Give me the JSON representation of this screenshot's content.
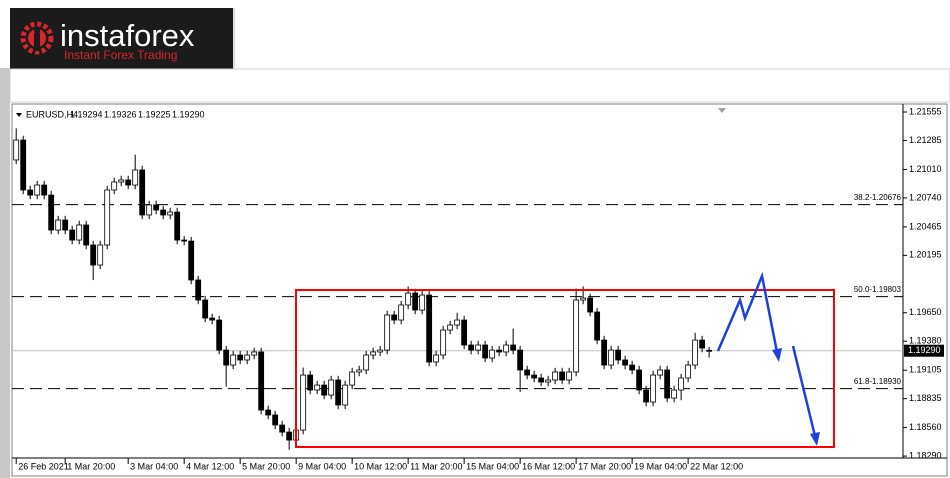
{
  "brand": {
    "name": "instaforex",
    "tagline": "Instant Forex Trading"
  },
  "chart_data": {
    "type": "candlestick",
    "symbol": "EURUSD,H4",
    "legend_values": [
      "1.19294",
      "1.19326",
      "1.19225",
      "1.19290"
    ],
    "last_price_label": "1.19290",
    "ylim": [
      1.18234,
      1.21612
    ],
    "xlim": [
      -0.6,
      126.7
    ],
    "yticks": [
      1.21555,
      1.21285,
      {
        "value": 1.2101,
        "label": "1.21010"
      },
      {
        "value": 1.2074,
        "label": "1.20740"
      },
      1.20465,
      1.20195,
      {
        "value": 1.1965,
        "label": "1.19650"
      },
      {
        "value": 1.1938,
        "label": "1.19380"
      },
      1.19105,
      1.18835,
      {
        "value": 1.1856,
        "label": "1.18560"
      },
      {
        "value": 1.1829,
        "label": "1.18290"
      }
    ],
    "xticks": [
      {
        "value": 0,
        "label": "26 Feb 2021"
      },
      {
        "value": 7,
        "label": "1 Mar 20:00"
      },
      {
        "value": 16,
        "label": "3 Mar 04:00"
      },
      {
        "value": 24,
        "label": "4 Mar 12:00"
      },
      {
        "value": 32,
        "label": "5 Mar 20:00"
      },
      {
        "value": 40,
        "label": "9 Mar 04:00"
      },
      {
        "value": 48,
        "label": "10 Mar 12:00"
      },
      {
        "value": 56,
        "label": "11 Mar 20:00"
      },
      {
        "value": 64,
        "label": "15 Mar 04:00"
      },
      {
        "value": 72,
        "label": "16 Mar 12:00"
      },
      {
        "value": 80,
        "label": "17 Mar 20:00"
      },
      {
        "value": 88,
        "label": "19 Mar 04:00"
      },
      {
        "value": 96,
        "label": "22 Mar 12:00"
      }
    ],
    "fib_levels": [
      {
        "value": 1.20676,
        "label": "38.2-1.20676"
      },
      {
        "value": 1.19803,
        "label": "50.0-1.19803"
      },
      {
        "value": 1.1893,
        "label": "61.8-1.18930"
      }
    ],
    "open": [
      1.211,
      1.21289,
      1.20815,
      1.20767,
      1.20862,
      1.20767,
      1.20435,
      1.2053,
      1.20435,
      1.2034,
      1.20483,
      1.20293,
      1.20103,
      1.20293,
      1.20815,
      1.20891,
      1.2091,
      1.20862,
      1.21005,
      1.20578,
      1.20673,
      1.20625,
      1.20578,
      1.20606,
      1.2034,
      1.2033,
      1.19961,
      1.19771,
      1.196,
      1.19581,
      1.19296,
      1.19154,
      1.19249,
      1.19202,
      1.19249,
      1.19278,
      1.18727,
      1.1868,
      1.18585,
      1.18518,
      1.18442,
      1.18537,
      1.19059,
      1.18917,
      1.18964,
      1.18869,
      1.19012,
      1.18775,
      1.18964,
      1.19088,
      1.19107,
      1.19249,
      1.19278,
      1.19296,
      1.19629,
      1.19581,
      1.19724,
      1.19837,
      1.19676,
      1.19818,
      1.19183,
      1.19249,
      1.19486,
      1.19534,
      1.19581,
      1.19344,
      1.19296,
      1.19344,
      1.19221,
      1.19296,
      1.19278,
      1.19344,
      1.19296,
      1.19107,
      1.19059,
      1.19031,
      1.18993,
      1.19012,
      1.19088,
      1.19012,
      1.19088,
      1.19771,
      1.1979,
      1.19657,
      1.19391,
      1.19154,
      1.19296,
      1.19202,
      1.19154,
      1.19107,
      1.18917,
      1.18803,
      1.19059,
      1.19107,
      1.18841,
      1.18917,
      1.19031,
      1.19154,
      1.19391,
      1.19294
    ],
    "high": [
      1.214,
      1.21329,
      1.20855,
      1.20902,
      1.20902,
      1.20807,
      1.2057,
      1.2057,
      1.20475,
      1.20523,
      1.20523,
      1.20333,
      1.20333,
      1.20855,
      1.20931,
      1.2095,
      1.2095,
      1.2115,
      1.21045,
      1.20713,
      1.20713,
      1.20665,
      1.20646,
      1.20646,
      1.2038,
      1.2037,
      1.20001,
      1.19811,
      1.1964,
      1.19621,
      1.19336,
      1.19289,
      1.19289,
      1.19289,
      1.19318,
      1.19318,
      1.18767,
      1.1872,
      1.18625,
      1.18558,
      1.18577,
      1.1913,
      1.19099,
      1.19004,
      1.19004,
      1.19052,
      1.19052,
      1.19004,
      1.19128,
      1.19147,
      1.19289,
      1.19318,
      1.19336,
      1.19669,
      1.19669,
      1.19764,
      1.199,
      1.19877,
      1.19858,
      1.19858,
      1.19289,
      1.19526,
      1.19574,
      1.1965,
      1.19621,
      1.19384,
      1.19384,
      1.19384,
      1.19336,
      1.19336,
      1.19384,
      1.195,
      1.19336,
      1.19147,
      1.19099,
      1.19071,
      1.19052,
      1.19128,
      1.19128,
      1.19128,
      1.1988,
      1.199,
      1.1983,
      1.19697,
      1.19431,
      1.19336,
      1.19336,
      1.19242,
      1.19194,
      1.19147,
      1.18957,
      1.19099,
      1.19147,
      1.19147,
      1.18957,
      1.19071,
      1.19194,
      1.1946,
      1.19431,
      1.19326
    ],
    "low": [
      1.2106,
      1.20775,
      1.20727,
      1.20727,
      1.20727,
      1.20395,
      1.20395,
      1.20395,
      1.203,
      1.203,
      1.20253,
      1.1996,
      1.20063,
      1.20253,
      1.20775,
      1.20851,
      1.20822,
      1.20822,
      1.20538,
      1.20538,
      1.20585,
      1.20538,
      1.20538,
      1.203,
      1.2029,
      1.19921,
      1.19731,
      1.1956,
      1.19541,
      1.19256,
      1.1895,
      1.19114,
      1.19162,
      1.19162,
      1.19209,
      1.18687,
      1.1864,
      1.18545,
      1.18478,
      1.1835,
      1.18402,
      1.18497,
      1.18877,
      1.18877,
      1.18829,
      1.18829,
      1.18735,
      1.18735,
      1.18924,
      1.19048,
      1.19067,
      1.19209,
      1.19238,
      1.19256,
      1.19541,
      1.19541,
      1.19684,
      1.19636,
      1.19636,
      1.19143,
      1.19143,
      1.19209,
      1.19446,
      1.19494,
      1.19304,
      1.19256,
      1.19256,
      1.19181,
      1.19181,
      1.19238,
      1.19238,
      1.19256,
      1.189,
      1.19019,
      1.18991,
      1.18953,
      1.18953,
      1.18972,
      1.18972,
      1.18972,
      1.19048,
      1.19731,
      1.19617,
      1.19351,
      1.19114,
      1.19114,
      1.19162,
      1.19114,
      1.19067,
      1.18877,
      1.18763,
      1.18763,
      1.19019,
      1.18801,
      1.18801,
      1.1882,
      1.18991,
      1.19114,
      1.19275,
      1.19225
    ],
    "close": [
      1.21289,
      1.20815,
      1.20767,
      1.20862,
      1.20767,
      1.20435,
      1.2053,
      1.20435,
      1.2034,
      1.20483,
      1.20293,
      1.20103,
      1.20293,
      1.20815,
      1.20891,
      1.2091,
      1.20862,
      1.21005,
      1.20578,
      1.20673,
      1.20625,
      1.20578,
      1.20606,
      1.2034,
      1.2033,
      1.19961,
      1.19771,
      1.196,
      1.19581,
      1.19296,
      1.19154,
      1.19249,
      1.19202,
      1.19249,
      1.19278,
      1.18727,
      1.1868,
      1.18585,
      1.18518,
      1.18442,
      1.18537,
      1.19059,
      1.18917,
      1.18964,
      1.18869,
      1.19012,
      1.18775,
      1.18964,
      1.19088,
      1.19107,
      1.19249,
      1.19278,
      1.19296,
      1.19629,
      1.19581,
      1.19724,
      1.19837,
      1.19676,
      1.19818,
      1.19183,
      1.19249,
      1.19486,
      1.19534,
      1.19581,
      1.19344,
      1.19296,
      1.19344,
      1.19221,
      1.19296,
      1.19278,
      1.19344,
      1.19296,
      1.19107,
      1.19059,
      1.19031,
      1.18993,
      1.19012,
      1.19088,
      1.19012,
      1.19088,
      1.19771,
      1.1979,
      1.19657,
      1.19391,
      1.19154,
      1.19296,
      1.19202,
      1.19154,
      1.19107,
      1.18917,
      1.18803,
      1.19059,
      1.19107,
      1.18841,
      1.18917,
      1.19031,
      1.19154,
      1.19391,
      1.19315,
      1.1929
    ]
  }
}
